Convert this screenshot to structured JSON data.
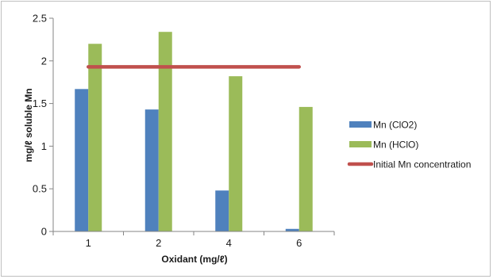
{
  "chart_data": {
    "type": "bar",
    "title": "",
    "xlabel": "Oxidant (mg/ℓ)",
    "ylabel": "mg/ℓ soluble Mn",
    "categories": [
      "1",
      "2",
      "4",
      "6"
    ],
    "ylim": [
      0,
      2.5
    ],
    "yticks": [
      "0",
      "0.5",
      "1",
      "1.5",
      "2",
      "2.5"
    ],
    "grid": false,
    "legend_position": "right",
    "series": [
      {
        "name": "Mn (ClO2)",
        "type": "bar",
        "color": "#4f81bd",
        "values": [
          1.67,
          1.43,
          0.48,
          0.03
        ]
      },
      {
        "name": "Mn (HClO)",
        "type": "bar",
        "color": "#9bbb59",
        "values": [
          2.2,
          2.34,
          1.82,
          1.46
        ]
      },
      {
        "name": "Initial Mn concentration",
        "type": "line",
        "color": "#c0504d",
        "values": [
          1.93,
          1.93,
          1.93,
          1.93
        ]
      }
    ]
  }
}
